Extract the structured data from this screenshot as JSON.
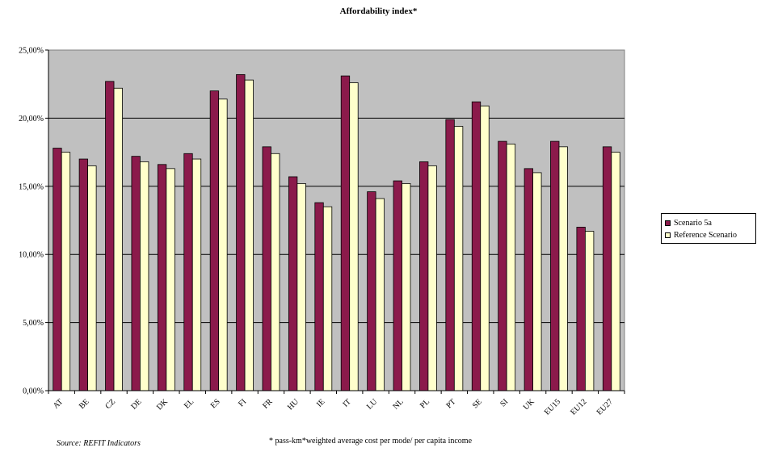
{
  "colors": {
    "plot_background": "#c0c0c0",
    "scenario": "#8b1a4b",
    "reference": "#ffffcc",
    "gridline": "#000000"
  },
  "chart_data": {
    "type": "bar",
    "title": "Affordability index*",
    "xlabel": "",
    "ylabel": "",
    "ylim": [
      0,
      25
    ],
    "y_ticks": [
      "0,00%",
      "5,00%",
      "10,00%",
      "15,00%",
      "20,00%",
      "25,00%"
    ],
    "grid": true,
    "legend_position": "right",
    "categories": [
      "AT",
      "BE",
      "CZ",
      "DE",
      "DK",
      "EL",
      "ES",
      "FI",
      "FR",
      "HU",
      "IE",
      "IT",
      "LU",
      "NL",
      "PL",
      "PT",
      "SE",
      "SI",
      "UK",
      "EU15",
      "EU12",
      "EU27"
    ],
    "series": [
      {
        "name": "Scenario 5a",
        "values": [
          17.8,
          17.0,
          22.7,
          17.2,
          16.6,
          17.4,
          22.0,
          23.2,
          17.9,
          15.7,
          13.8,
          23.1,
          14.6,
          15.4,
          16.8,
          19.9,
          21.2,
          18.3,
          16.3,
          18.3,
          12.0,
          17.9
        ]
      },
      {
        "name": "Reference Scenario",
        "values": [
          17.5,
          16.5,
          22.2,
          16.8,
          16.3,
          17.0,
          21.4,
          22.8,
          17.4,
          15.2,
          13.5,
          22.6,
          14.1,
          15.2,
          16.5,
          19.4,
          20.9,
          18.1,
          16.0,
          17.9,
          11.7,
          17.5
        ]
      }
    ]
  },
  "source_note": "Source: REFIT Indicators",
  "footnote": "* pass-km*weighted average cost per mode/ per capita income"
}
